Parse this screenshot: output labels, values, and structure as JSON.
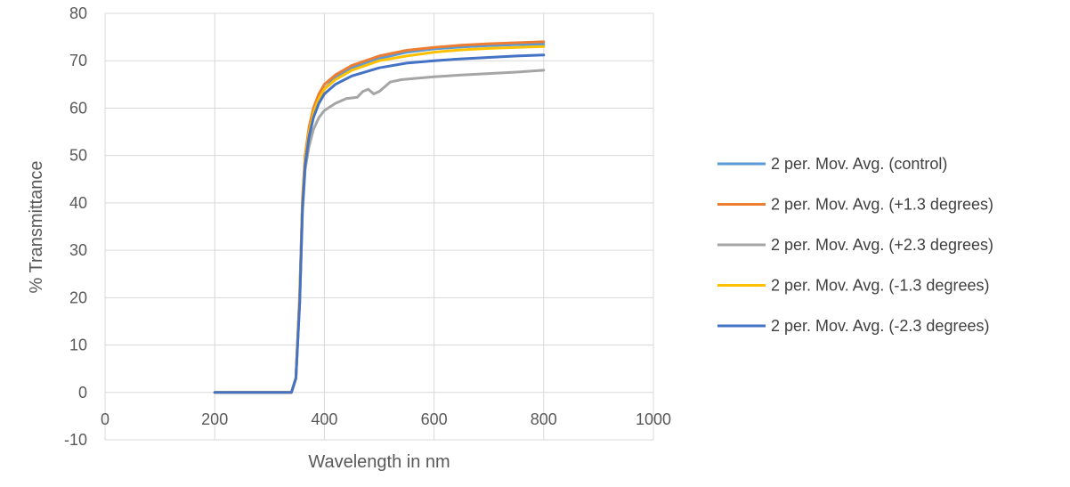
{
  "chart_data": {
    "type": "line",
    "title": "",
    "xlabel": "Wavelength in nm",
    "ylabel": "% Transmittance",
    "xlim": [
      0,
      1000
    ],
    "ylim": [
      -10,
      80
    ],
    "xticks": [
      0,
      200,
      400,
      600,
      800,
      1000
    ],
    "yticks": [
      -10,
      0,
      10,
      20,
      30,
      40,
      50,
      60,
      70,
      80
    ],
    "grid": true,
    "legend_position": "right",
    "series": [
      {
        "name": "2 per. Mov. Avg. (control)",
        "color": "#5B9BD5",
        "x": [
          200,
          340,
          348,
          355,
          360,
          365,
          372,
          380,
          390,
          400,
          420,
          450,
          500,
          550,
          600,
          650,
          700,
          750,
          800
        ],
        "y": [
          0,
          0,
          3,
          20,
          40,
          49,
          55,
          59,
          62,
          64,
          66.5,
          68.5,
          70.5,
          71.8,
          72.5,
          72.9,
          73.2,
          73.4,
          73.5
        ]
      },
      {
        "name": "2 per. Mov. Avg. (+1.3 degrees)",
        "color": "#ED7D31",
        "x": [
          200,
          340,
          348,
          355,
          360,
          365,
          372,
          380,
          390,
          400,
          420,
          450,
          500,
          550,
          600,
          650,
          700,
          750,
          800
        ],
        "y": [
          0,
          0,
          3,
          21,
          41,
          50,
          56,
          60,
          63,
          65,
          67,
          69,
          71,
          72.2,
          72.8,
          73.3,
          73.6,
          73.8,
          74
        ]
      },
      {
        "name": "2 per. Mov. Avg. (+2.3 degrees)",
        "color": "#A5A5A5",
        "x": [
          200,
          340,
          348,
          355,
          360,
          365,
          372,
          380,
          390,
          400,
          420,
          440,
          460,
          470,
          480,
          490,
          500,
          510,
          520,
          540,
          560,
          600,
          650,
          700,
          750,
          800
        ],
        "y": [
          0,
          0,
          3,
          19,
          38,
          47,
          52,
          55.5,
          58,
          59.5,
          61,
          62,
          62.3,
          63.5,
          64,
          63,
          63.5,
          64.5,
          65.5,
          66,
          66.2,
          66.6,
          67,
          67.3,
          67.6,
          68
        ]
      },
      {
        "name": "2 per. Mov. Avg. (-1.3 degrees)",
        "color": "#FFC000",
        "x": [
          200,
          340,
          348,
          355,
          360,
          365,
          372,
          380,
          390,
          400,
          420,
          450,
          500,
          550,
          600,
          650,
          700,
          750,
          800
        ],
        "y": [
          0,
          0,
          3,
          20,
          40,
          49,
          55,
          59,
          62,
          64,
          66,
          68,
          70,
          71,
          71.8,
          72.3,
          72.6,
          72.8,
          73
        ]
      },
      {
        "name": "2 per. Mov. Avg. (-2.3 degrees)",
        "color": "#4472C4",
        "x": [
          200,
          340,
          348,
          355,
          360,
          365,
          372,
          380,
          390,
          400,
          420,
          450,
          500,
          550,
          600,
          650,
          700,
          750,
          800
        ],
        "y": [
          0,
          0,
          3,
          19,
          39,
          48,
          54,
          58,
          61,
          63,
          65,
          66.8,
          68.5,
          69.5,
          70,
          70.4,
          70.7,
          71,
          71.2
        ]
      }
    ]
  }
}
